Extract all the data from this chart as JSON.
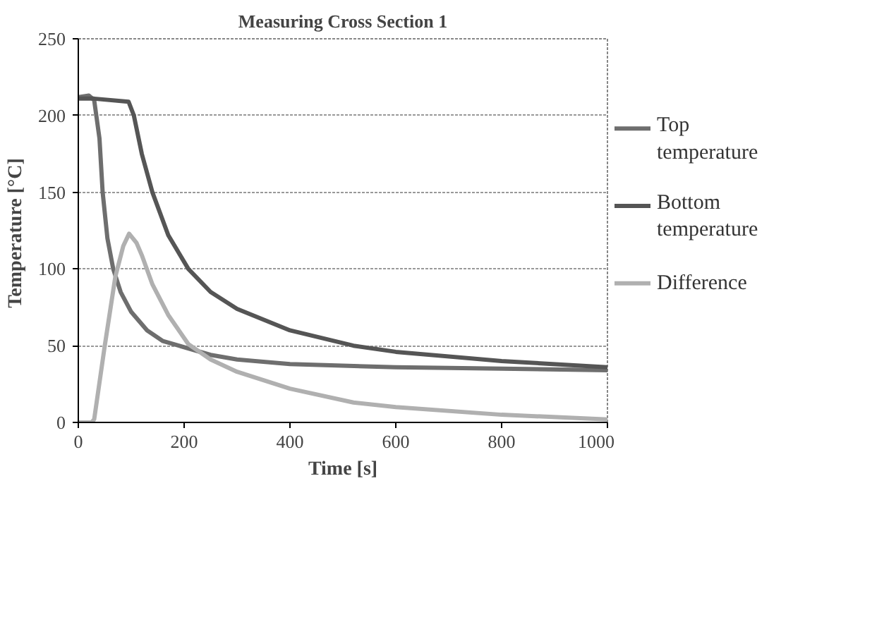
{
  "chart_data": {
    "type": "line",
    "title": "Measuring Cross Section 1",
    "xlabel": "Time [s]",
    "ylabel": "Temperature  [°C]",
    "xlim": [
      0,
      1000
    ],
    "xticks": [
      0,
      200,
      400,
      600,
      800,
      1000
    ],
    "ylim": [
      0,
      250
    ],
    "yticks": [
      0,
      50,
      100,
      150,
      200,
      250
    ],
    "grid": "y",
    "legend": "right",
    "marker": "none",
    "line_style": "solid",
    "series": [
      {
        "name": "Top temperature",
        "color": "#6e6e6e",
        "x": [
          0,
          20,
          30,
          40,
          46,
          55,
          66,
          80,
          100,
          130,
          160,
          190,
          250,
          300,
          400,
          600,
          800,
          1000
        ],
        "values": [
          212,
          213,
          210,
          185,
          150,
          120,
          100,
          85,
          72,
          60,
          53,
          50,
          44,
          41,
          38,
          36,
          35,
          34
        ]
      },
      {
        "name": "Bottom temperature",
        "color": "#555555",
        "x": [
          0,
          30,
          95,
          105,
          120,
          140,
          170,
          208,
          250,
          300,
          400,
          520,
          600,
          800,
          1000
        ],
        "values": [
          211,
          211,
          209,
          200,
          175,
          150,
          122,
          100,
          85,
          74,
          60,
          50,
          46,
          40,
          36
        ]
      },
      {
        "name": "Difference",
        "color": "#b0b0b0",
        "x": [
          0,
          25,
          30,
          50,
          70,
          85,
          96,
          110,
          120,
          140,
          170,
          208,
          250,
          300,
          400,
          520,
          600,
          800,
          1000
        ],
        "values": [
          0,
          0,
          2,
          50,
          95,
          115,
          123,
          117,
          109,
          90,
          70,
          51,
          41,
          33,
          22,
          13,
          10,
          5,
          2
        ]
      }
    ]
  }
}
